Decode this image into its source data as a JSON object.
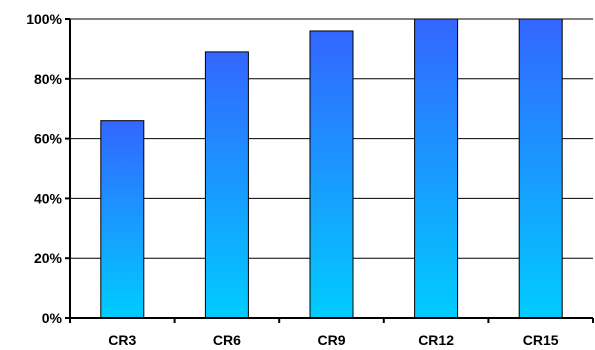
{
  "chart_data": {
    "type": "bar",
    "title": "",
    "xlabel": "",
    "ylabel": "",
    "categories": [
      "CR3",
      "CR6",
      "CR9",
      "CR12",
      "CR15"
    ],
    "values": [
      66,
      89,
      96,
      100,
      100
    ],
    "ylim": [
      0,
      100
    ],
    "yticks": [
      0,
      20,
      40,
      60,
      80,
      100
    ],
    "ytick_labels": [
      "0%",
      "20%",
      "40%",
      "60%",
      "80%",
      "100%"
    ],
    "grid": true,
    "legend": "none",
    "colors": {
      "bar_top": "#3366FF",
      "bar_bottom": "#00CCFF",
      "bar_outline": "#000000",
      "grid": "#000000"
    }
  }
}
